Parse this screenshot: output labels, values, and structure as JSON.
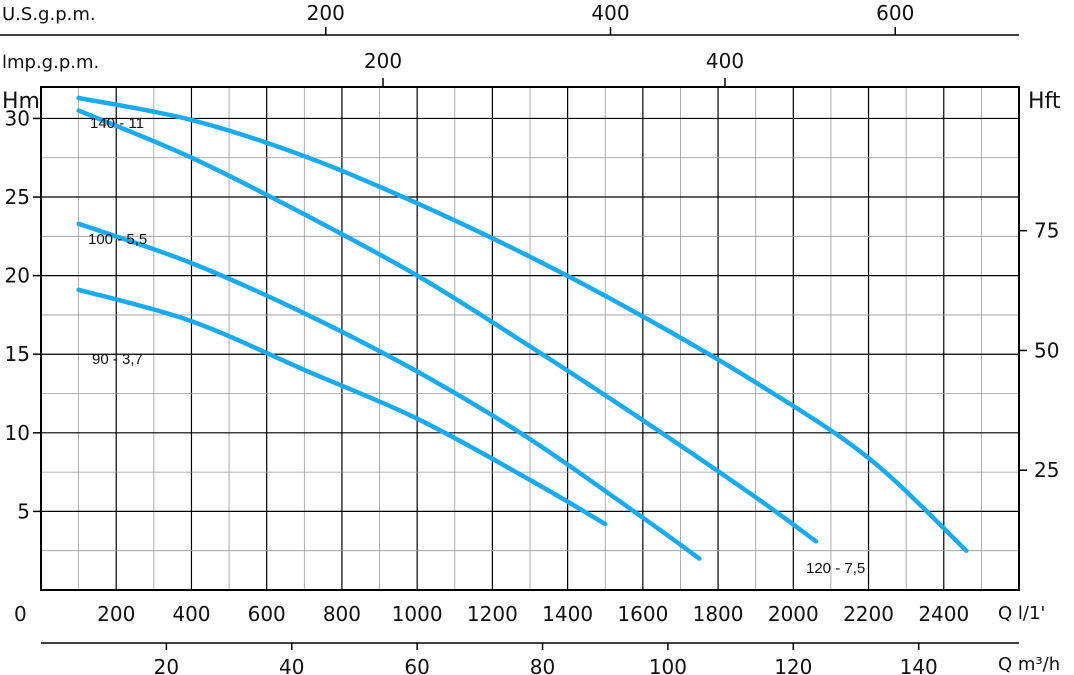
{
  "chart_data": {
    "type": "line",
    "y_left": {
      "label": "Hm",
      "range": [
        0,
        32
      ],
      "ticks": [
        5,
        10,
        15,
        20,
        25,
        30
      ]
    },
    "y_right": {
      "label": "Hft",
      "ticks": [
        25,
        50,
        75
      ]
    },
    "x_bottom": {
      "label": "Q l/1'",
      "zero_label": "0",
      "range": [
        0,
        2600
      ],
      "ticks": [
        200,
        400,
        600,
        800,
        1000,
        1200,
        1400,
        1600,
        1800,
        2000,
        2200,
        2400
      ]
    },
    "x_m3h": {
      "label": "Q m³/h",
      "ticks": [
        20,
        40,
        60,
        80,
        100,
        120,
        140
      ]
    },
    "x_usgpm": {
      "label": "U.S.g.p.m.",
      "ticks": [
        200,
        400,
        600
      ]
    },
    "x_impgpm": {
      "label": "lmp.g.p.m.",
      "ticks": [
        200,
        400
      ]
    },
    "grid": true,
    "line_color": "#19aaf0",
    "series": [
      {
        "name": "140 - 11",
        "x": [
          100,
          400,
          700,
          1000,
          1300,
          1600,
          1900,
          2200,
          2460
        ],
        "y": [
          31.3,
          29.9,
          27.6,
          24.6,
          21.2,
          17.4,
          13.2,
          8.4,
          2.5
        ]
      },
      {
        "name": "120 - 7,5",
        "x": [
          100,
          400,
          700,
          1000,
          1300,
          1600,
          1900,
          2060
        ],
        "y": [
          30.5,
          27.5,
          23.9,
          20.0,
          15.5,
          10.8,
          5.9,
          3.1
        ]
      },
      {
        "name": "100 - 5,5",
        "x": [
          100,
          400,
          700,
          1000,
          1300,
          1600,
          1750
        ],
        "y": [
          23.3,
          20.8,
          17.6,
          13.9,
          9.6,
          4.6,
          2.0
        ]
      },
      {
        "name": "90 - 3,7",
        "x": [
          100,
          400,
          700,
          1000,
          1300,
          1500
        ],
        "y": [
          19.1,
          17.1,
          14.0,
          10.9,
          7.0,
          4.2
        ]
      }
    ]
  }
}
